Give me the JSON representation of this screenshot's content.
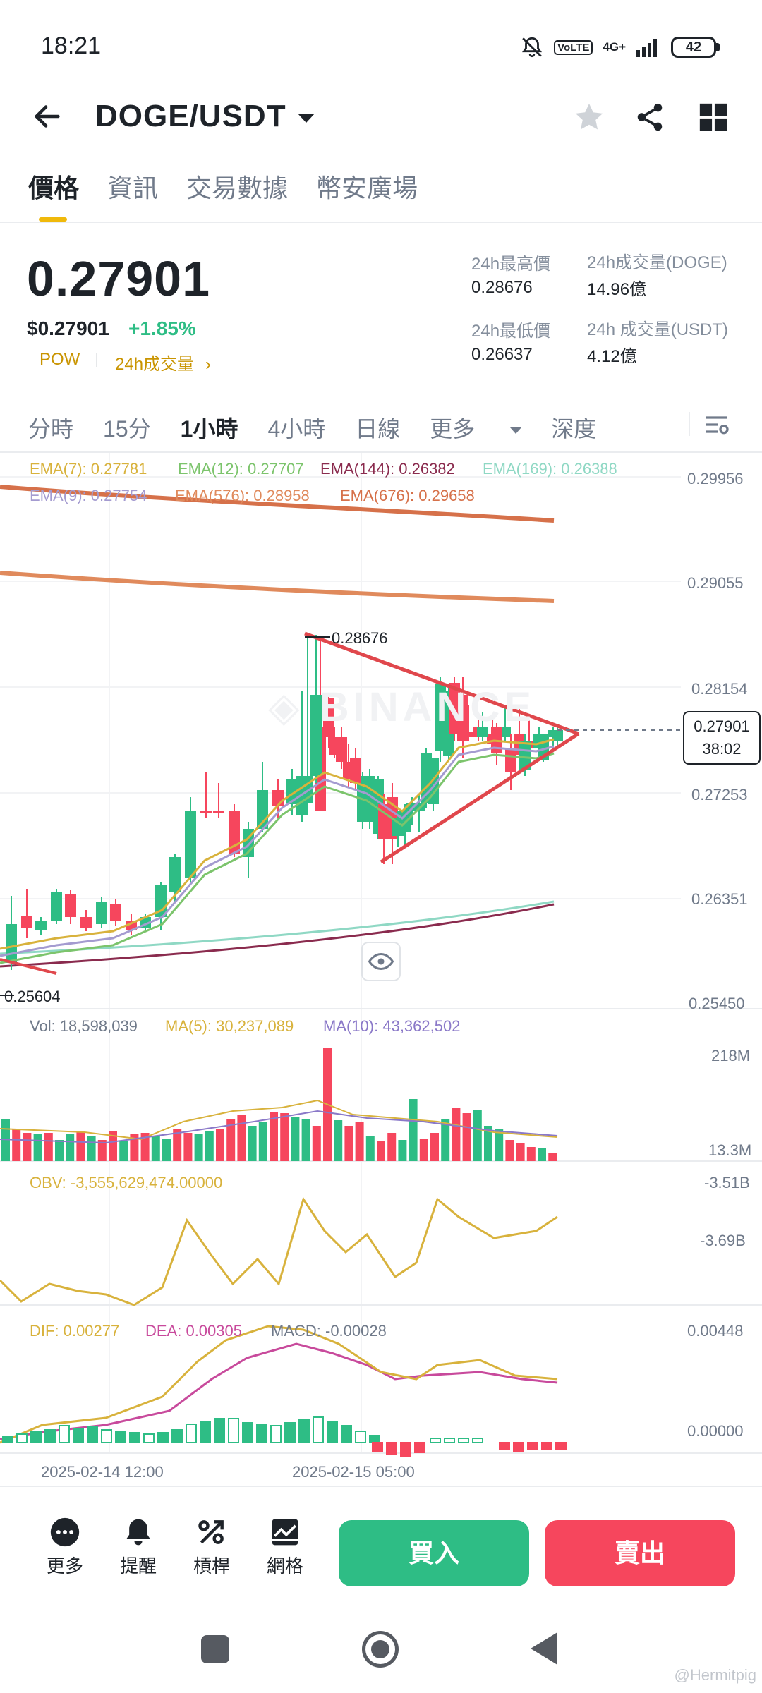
{
  "status_bar": {
    "time": "18:21",
    "volte": "VoLTE",
    "network": "4G+",
    "battery": "42"
  },
  "header": {
    "pair": "DOGE/USDT"
  },
  "tabs": [
    "價格",
    "資訊",
    "交易數據",
    "幣安廣場"
  ],
  "summary": {
    "last_price": "0.27901",
    "usd_price": "$0.27901",
    "change": "+1.85%",
    "pow": "POW",
    "volume_link": "24h成交量",
    "high_label": "24h最高價",
    "high": "0.28676",
    "low_label": "24h最低價",
    "low": "0.26637",
    "vol_doge_label": "24h成交量(DOGE)",
    "vol_doge": "14.96億",
    "vol_usdt_label": "24h 成交量(USDT)",
    "vol_usdt": "4.12億"
  },
  "intervals": {
    "items": [
      "分時",
      "15分",
      "1小時",
      "4小時",
      "日線",
      "更多",
      "深度"
    ],
    "selected": "1小時"
  },
  "chart": {
    "ema_legend": [
      {
        "text": "EMA(7): 0.27781",
        "color": "#d8b23c"
      },
      {
        "text": "EMA(12): 0.27707",
        "color": "#7cc46c"
      },
      {
        "text": "EMA(144): 0.26382",
        "color": "#8a2b4e"
      },
      {
        "text": "EMA(169): 0.26388",
        "color": "#8fd8c4"
      },
      {
        "text": "EMA(9): 0.27754",
        "color": "#a49bd0"
      },
      {
        "text": "EMA(576): 0.28958",
        "color": "#e08a5c"
      },
      {
        "text": "EMA(676): 0.29658",
        "color": "#d6714a"
      }
    ],
    "price_axis": [
      "0.29956",
      "0.29055",
      "0.28154",
      "0.27253",
      "0.26351",
      "0.25450"
    ],
    "high_marker": "0.28676",
    "low_marker": "0.25604",
    "current_price": "0.27901",
    "countdown": "38:02",
    "volume": {
      "vol": "Vol: 18,598,039",
      "ma5": "MA(5): 30,237,089",
      "ma10": "MA(10): 43,362,502",
      "axis_top": "218M",
      "axis_bottom": "13.3M"
    },
    "obv": {
      "label": "OBV: -3,555,629,474.00000",
      "axis_top": "-3.51B",
      "axis_mid": "-3.69B"
    },
    "macd": {
      "dif": "DIF: 0.00277",
      "dea": "DEA: 0.00305",
      "macd": "MACD: -0.00028",
      "axis_top": "0.00448",
      "axis_bottom": "0.00000"
    },
    "time_axis": [
      "2025-02-14 12:00",
      "2025-02-15 05:00"
    ],
    "colors": {
      "up": "#2ebd85",
      "down": "#f6465d",
      "trend": "#e0474c"
    }
  },
  "chart_data": {
    "type": "candlestick",
    "title": "DOGE/USDT",
    "interval": "1小時",
    "x": [
      "2025-02-14 12:00",
      "2025-02-15 05:00"
    ],
    "ylim": [
      0.2545,
      0.29956
    ],
    "series": [
      {
        "name": "EMA(7)",
        "last": 0.27781
      },
      {
        "name": "EMA(12)",
        "last": 0.27707
      },
      {
        "name": "EMA(9)",
        "last": 0.27754
      },
      {
        "name": "EMA(144)",
        "last": 0.26382
      },
      {
        "name": "EMA(169)",
        "last": 0.26388
      },
      {
        "name": "EMA(576)",
        "last": 0.28958
      },
      {
        "name": "EMA(676)",
        "last": 0.29658
      }
    ],
    "high": 0.28676,
    "low": 0.25604,
    "last": 0.27901
  },
  "bottom_bar": {
    "tools": [
      "更多",
      "提醒",
      "槓桿",
      "網格"
    ],
    "buy": "買入",
    "sell": "賣出"
  },
  "watermark": "@Hermitpig"
}
